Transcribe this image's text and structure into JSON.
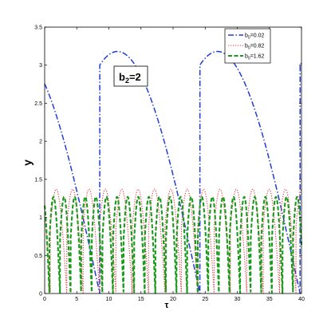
{
  "chart_data": {
    "type": "line",
    "xlabel": "τ",
    "ylabel": "y",
    "xlim": [
      0,
      40
    ],
    "ylim": [
      0,
      3.5
    ],
    "xticks": [
      0,
      5,
      10,
      15,
      20,
      25,
      30,
      35,
      40
    ],
    "yticks": [
      0,
      0.5,
      1,
      1.5,
      2,
      2.5,
      3,
      3.5
    ],
    "grid": false,
    "legend_placement": "top-right",
    "annotation": {
      "main": "b",
      "sub": "2",
      "rest": "=2"
    },
    "series": [
      {
        "legend_main": "b",
        "legend_sub": "0",
        "legend_rest": "=0.02",
        "color": "#1f3bd6",
        "style": "dashdot",
        "model": {
          "y0": 1.05,
          "amp": 3.18,
          "period": 15.6,
          "phase": 0.45
        }
      },
      {
        "legend_main": "b",
        "legend_sub": "0",
        "legend_rest": "=0.82",
        "color": "#e8343a",
        "style": "dotted",
        "model": {
          "y0": 1.05,
          "amp": 1.37,
          "period": 2.55,
          "phase": 0.65
        }
      },
      {
        "legend_main": "b",
        "legend_sub": "0",
        "legend_rest": "=1.62",
        "color": "#1a9a1a",
        "style": "dashed",
        "model": {
          "y0": 1.05,
          "amp": 1.27,
          "period": 1.65,
          "phase": 0.55
        }
      }
    ]
  }
}
